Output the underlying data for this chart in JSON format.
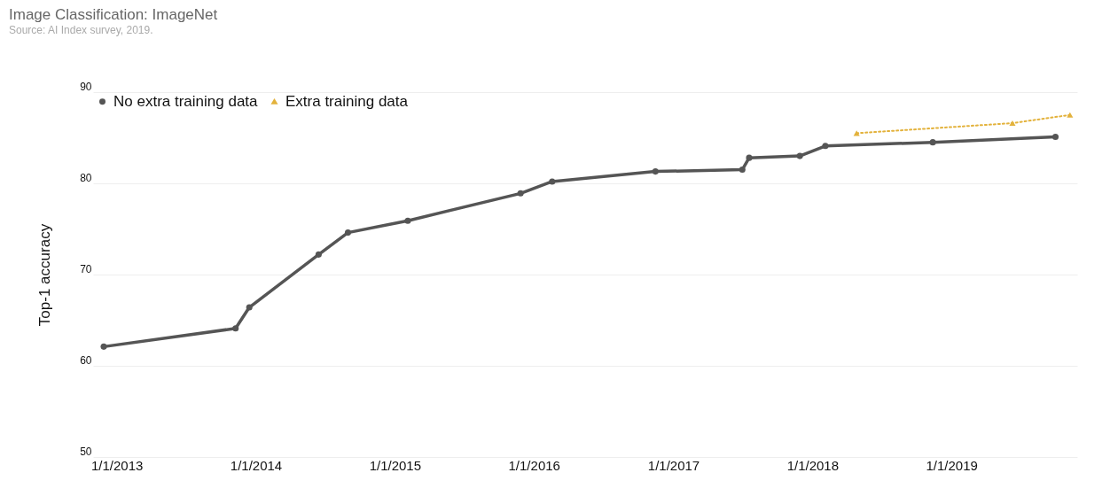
{
  "chart_data": {
    "type": "line",
    "title": "Image Classification: ImageNet",
    "annotations": [
      "Source: AI Index survey, 2019."
    ],
    "ylabel": "Top-1 accuracy",
    "xlim": [
      "2012-10-31",
      "2019-11-27"
    ],
    "xticks": [
      {
        "value": "2013-01-01",
        "label": "1/1/2013"
      },
      {
        "value": "2014-01-01",
        "label": "1/1/2014"
      },
      {
        "value": "2015-01-01",
        "label": "1/1/2015"
      },
      {
        "value": "2016-01-01",
        "label": "1/1/2016"
      },
      {
        "value": "2017-01-01",
        "label": "1/1/2017"
      },
      {
        "value": "2018-01-01",
        "label": "1/1/2018"
      },
      {
        "value": "2019-01-01",
        "label": "1/1/2019"
      }
    ],
    "ylim": [
      50,
      90
    ],
    "yticks": [
      50,
      60,
      70,
      80,
      90
    ],
    "grid": "y",
    "legend": "top left",
    "series": [
      {
        "name": "No extra training data",
        "color": "#555555",
        "marker": "circle",
        "line_style": "solid",
        "x": [
          "2012-11-28",
          "2013-11-09",
          "2013-12-15",
          "2014-06-15",
          "2014-08-31",
          "2015-02-04",
          "2015-11-27",
          "2016-02-18",
          "2016-11-15",
          "2017-07-01",
          "2017-07-19",
          "2017-11-29",
          "2018-02-04",
          "2018-11-13",
          "2019-10-01"
        ],
        "values": [
          62.1,
          64.1,
          66.4,
          72.2,
          74.6,
          75.9,
          78.9,
          80.2,
          81.3,
          81.5,
          82.8,
          83.0,
          84.1,
          84.5,
          85.1
        ]
      },
      {
        "name": "Extra training data",
        "color": "#e3b23c",
        "marker": "triangle",
        "line_style": "dotted",
        "x": [
          "2018-04-27",
          "2019-06-10",
          "2019-11-08"
        ],
        "values": [
          85.5,
          86.6,
          87.5
        ]
      }
    ]
  }
}
